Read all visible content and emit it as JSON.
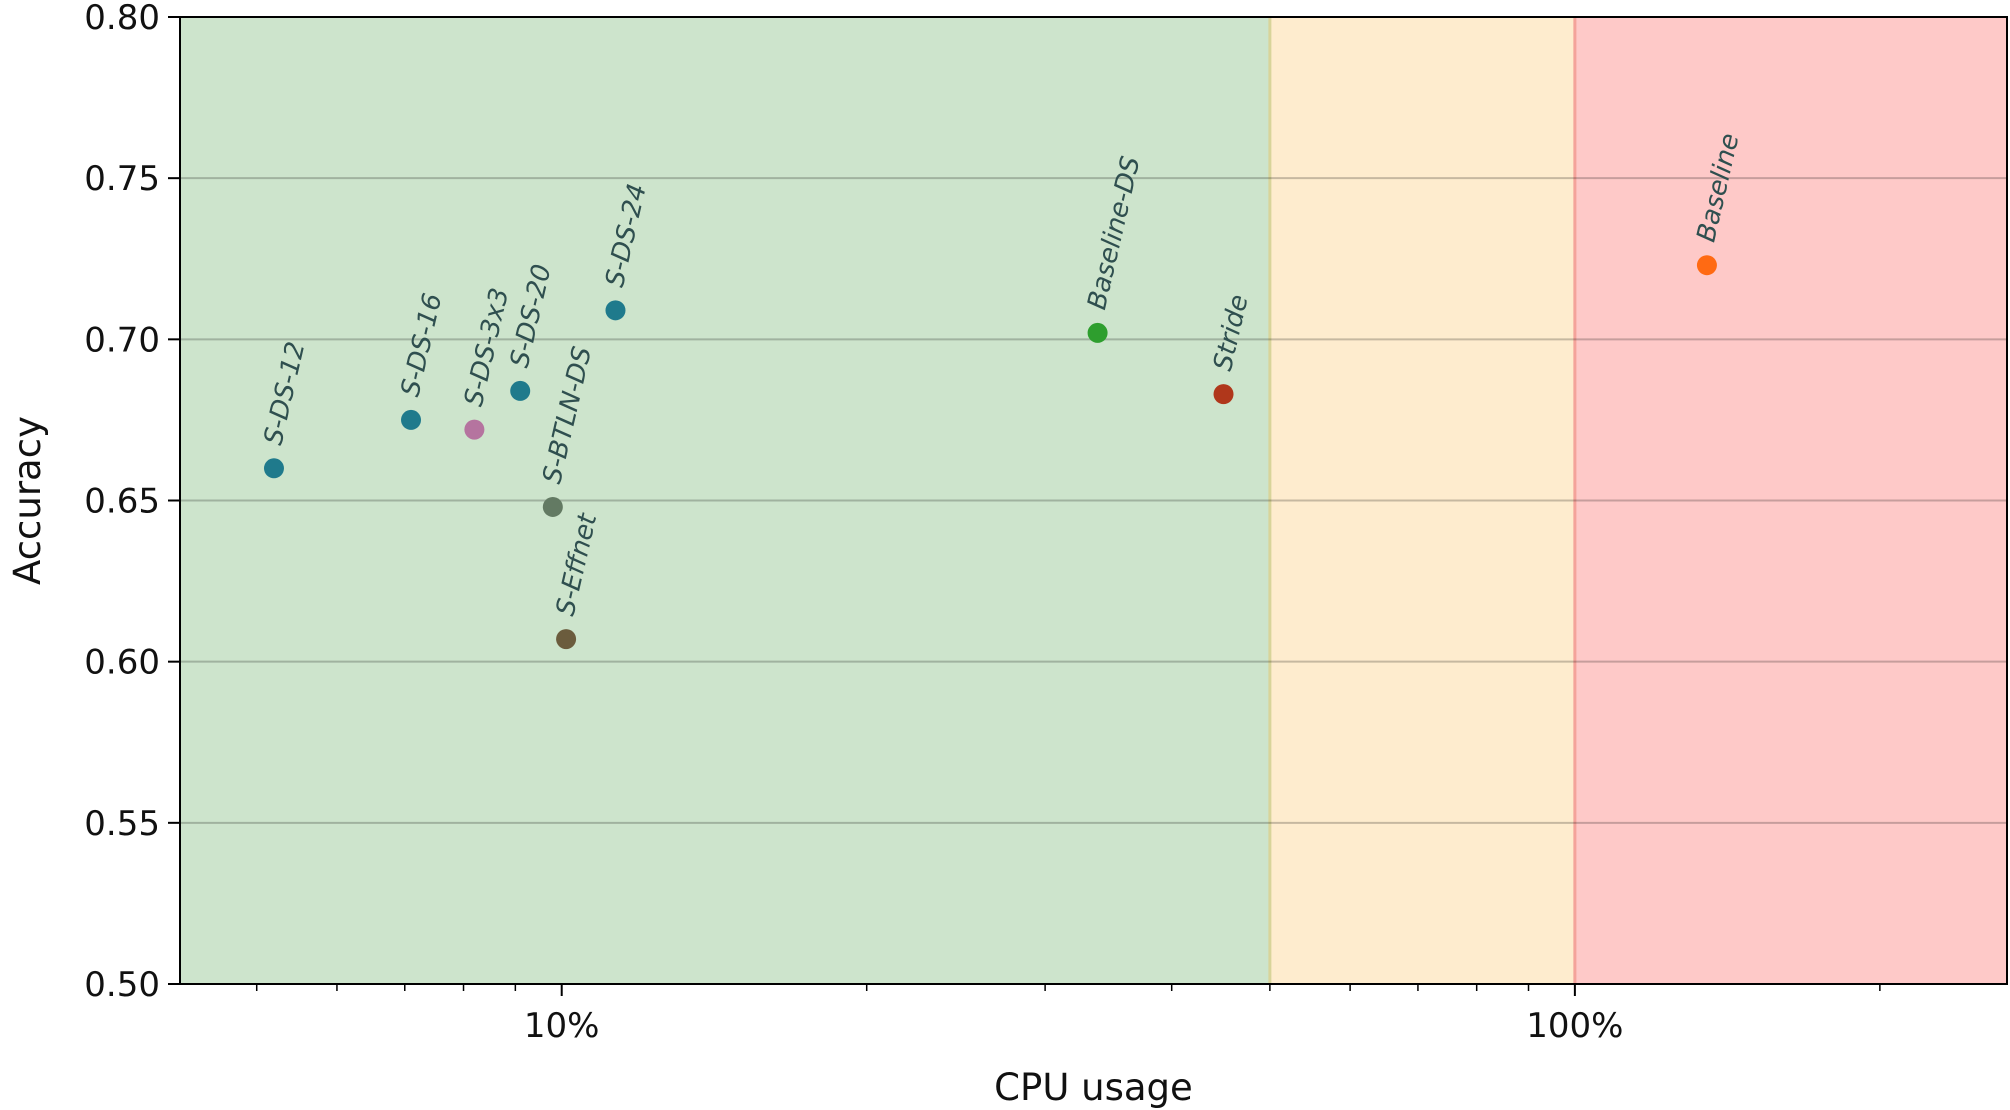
{
  "chart_data": {
    "type": "scatter",
    "title": "",
    "xlabel": "CPU usage",
    "ylabel": "Accuracy",
    "xscale": "log",
    "xlim": [
      4.2,
      267
    ],
    "ylim": [
      0.5,
      0.8
    ],
    "x_ticks": [
      {
        "value": 10,
        "label": "10%"
      },
      {
        "value": 100,
        "label": "100%"
      }
    ],
    "y_ticks": [
      {
        "value": 0.5,
        "label": "0.50"
      },
      {
        "value": 0.55,
        "label": "0.55"
      },
      {
        "value": 0.6,
        "label": "0.60"
      },
      {
        "value": 0.65,
        "label": "0.65"
      },
      {
        "value": 0.7,
        "label": "0.70"
      },
      {
        "value": 0.75,
        "label": "0.75"
      },
      {
        "value": 0.8,
        "label": "0.80"
      }
    ],
    "grid": "horizontal",
    "regions": [
      {
        "from": 4.2,
        "to": 50,
        "color": "#cde4cc"
      },
      {
        "from": 50,
        "to": 100,
        "color": "#feecce"
      },
      {
        "from": 100,
        "to": 267,
        "color": "#fec9c8"
      }
    ],
    "region_boundaries": [
      {
        "x": 50,
        "color": "#d8d49a"
      },
      {
        "x": 100,
        "color": "#f4a39a"
      }
    ],
    "points": [
      {
        "label": "S-DS-12",
        "x": 5.2,
        "y": 0.66,
        "color": "#1f7a8c"
      },
      {
        "label": "S-DS-16",
        "x": 7.1,
        "y": 0.675,
        "color": "#1f7a8c"
      },
      {
        "label": "S-DS-3x3",
        "x": 8.2,
        "y": 0.672,
        "color": "#b5749f"
      },
      {
        "label": "S-DS-20",
        "x": 9.1,
        "y": 0.684,
        "color": "#1f7a8c"
      },
      {
        "label": "S-BTLN-DS",
        "x": 9.8,
        "y": 0.648,
        "color": "#637a63"
      },
      {
        "label": "S-Effnet",
        "x": 10.1,
        "y": 0.607,
        "color": "#6b5c3d"
      },
      {
        "label": "S-DS-24",
        "x": 11.3,
        "y": 0.709,
        "color": "#1f7a8c"
      },
      {
        "label": "Baseline-DS",
        "x": 33.8,
        "y": 0.702,
        "color": "#2e9e2e"
      },
      {
        "label": "Stride",
        "x": 45.0,
        "y": 0.683,
        "color": "#b0371b"
      },
      {
        "label": "Baseline",
        "x": 135,
        "y": 0.723,
        "color": "#ff6a13"
      }
    ]
  }
}
